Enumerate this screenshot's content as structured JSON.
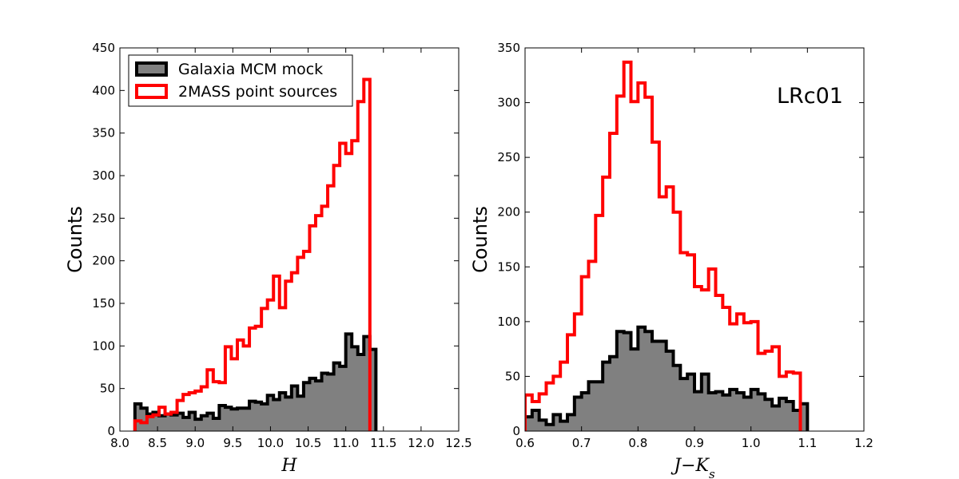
{
  "chart_data": [
    {
      "type": "histogram",
      "xlabel": "H",
      "ylabel": "Counts",
      "xlim": [
        8.0,
        12.5
      ],
      "ylim": [
        0,
        450
      ],
      "xticks": [
        "8.0",
        "8.5",
        "9.0",
        "9.5",
        "10.0",
        "10.5",
        "11.0",
        "11.5",
        "12.0",
        "12.5"
      ],
      "yticks": [
        "0",
        "50",
        "100",
        "150",
        "200",
        "250",
        "300",
        "350",
        "400",
        "450"
      ],
      "bin_start": 8.2,
      "bin_width": 0.08,
      "legend": {
        "placement": "top-left",
        "entries": [
          "Galaxia MCM mock",
          "2MASS point sources"
        ]
      },
      "series": [
        {
          "name": "Galaxia MCM mock",
          "style": "filled",
          "fill": "#808080",
          "edge": "#000000",
          "values": [
            32,
            27,
            20,
            22,
            18,
            20,
            19,
            21,
            16,
            22,
            14,
            18,
            21,
            15,
            30,
            28,
            26,
            27,
            27,
            35,
            34,
            32,
            42,
            37,
            45,
            40,
            53,
            41,
            57,
            62,
            59,
            68,
            67,
            80,
            76,
            114,
            99,
            90,
            111,
            96
          ]
        },
        {
          "name": "2MASS point sources",
          "style": "step",
          "edge": "#ff0000",
          "values": [
            12,
            10,
            17,
            19,
            28,
            20,
            22,
            36,
            43,
            45,
            47,
            52,
            72,
            58,
            57,
            99,
            85,
            107,
            100,
            121,
            123,
            144,
            154,
            182,
            145,
            176,
            186,
            204,
            211,
            241,
            253,
            264,
            288,
            312,
            338,
            326,
            341,
            387,
            413
          ]
        }
      ]
    },
    {
      "type": "histogram",
      "xlabel": "J−K_s",
      "ylabel": "Counts",
      "annotation": "LRc01",
      "xlim": [
        0.6,
        1.2
      ],
      "ylim": [
        0,
        350
      ],
      "xticks": [
        "0.6",
        "0.7",
        "0.8",
        "0.9",
        "1.0",
        "1.1",
        "1.2"
      ],
      "yticks": [
        "0",
        "50",
        "100",
        "150",
        "200",
        "250",
        "300",
        "350"
      ],
      "bin_start": 0.6,
      "bin_width": 0.0125,
      "series": [
        {
          "name": "Galaxia MCM mock",
          "style": "filled",
          "fill": "#808080",
          "edge": "#000000",
          "values": [
            13,
            19,
            10,
            6,
            15,
            9,
            15,
            31,
            35,
            45,
            45,
            63,
            68,
            91,
            90,
            75,
            95,
            91,
            82,
            82,
            73,
            60,
            48,
            52,
            36,
            52,
            35,
            36,
            33,
            38,
            35,
            31,
            38,
            34,
            29,
            23,
            30,
            27,
            19,
            25
          ]
        },
        {
          "name": "2MASS point sources",
          "style": "step",
          "edge": "#ff0000",
          "values": [
            33,
            27,
            34,
            44,
            50,
            63,
            88,
            107,
            141,
            155,
            197,
            232,
            272,
            306,
            337,
            301,
            318,
            305,
            264,
            214,
            223,
            200,
            163,
            161,
            132,
            129,
            148,
            124,
            113,
            98,
            107,
            99,
            100,
            71,
            73,
            77,
            50,
            54,
            53
          ]
        }
      ]
    }
  ]
}
